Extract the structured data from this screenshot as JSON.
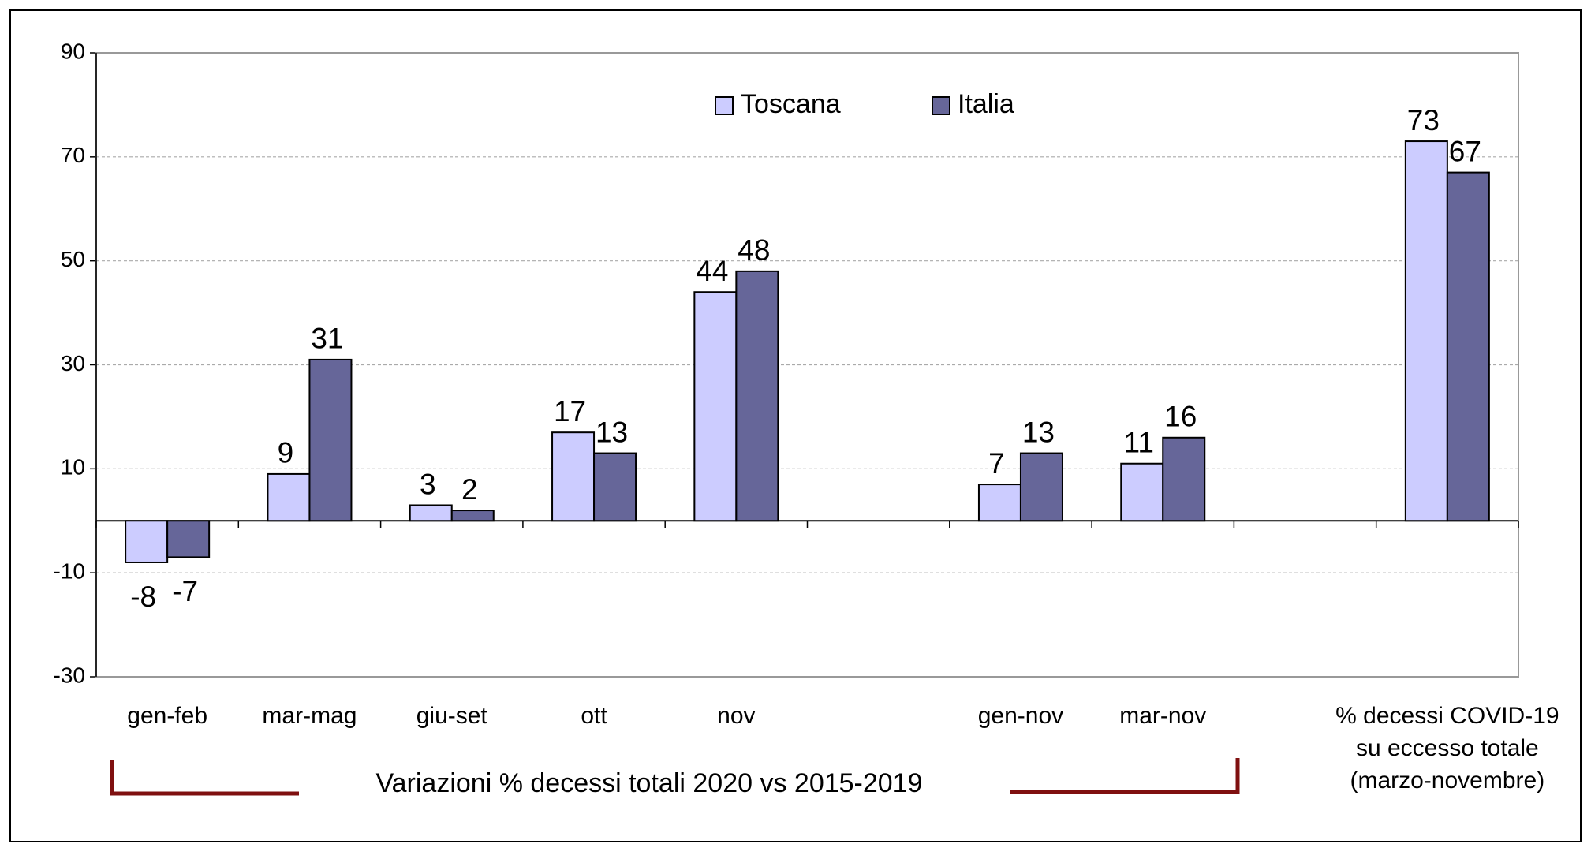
{
  "chart_data": {
    "type": "bar",
    "categories": [
      "gen-feb",
      "mar-mag",
      "giu-set",
      "ott",
      "nov",
      null,
      "gen-nov",
      "mar-nov",
      null,
      "% decessi COVID-19\nsu eccesso totale\n(marzo-novembre)"
    ],
    "series": [
      {
        "name": "Toscana",
        "color": "#ccccff",
        "values": [
          -8,
          9,
          3,
          17,
          44,
          null,
          7,
          11,
          null,
          73
        ]
      },
      {
        "name": "Italia",
        "color": "#666699",
        "values": [
          -7,
          31,
          2,
          13,
          48,
          null,
          13,
          16,
          null,
          67
        ]
      }
    ],
    "ylim": [
      -30,
      90
    ],
    "yticks": [
      -30,
      -10,
      10,
      30,
      50,
      70,
      90
    ],
    "grid": true,
    "legend": "top",
    "annotation": "Variazioni %  decessi totali 2020 vs 2015-2019"
  }
}
